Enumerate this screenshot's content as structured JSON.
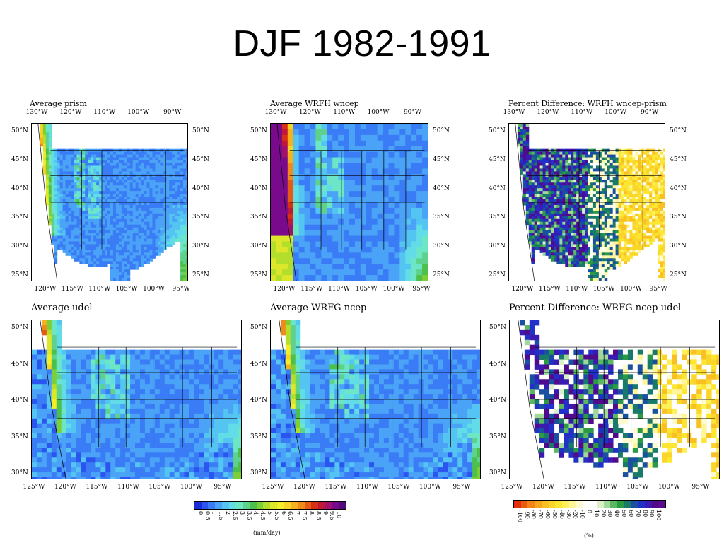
{
  "slide": {
    "title": "DJF 1982-1991"
  },
  "panels": [
    {
      "id": "prism",
      "title": "Average prism",
      "kind": "precip",
      "style": "fine",
      "top_lon_labels": [
        "130°W",
        "120°W",
        "110°W",
        "100°W",
        "90°W"
      ],
      "bottom_lon_labels": [
        "120°W",
        "115°W",
        "110°W",
        "105°W",
        "100°W",
        "95°W"
      ],
      "lat_labels": [
        "50°N",
        "45°N",
        "40°N",
        "35°N",
        "30°N",
        "25°N"
      ],
      "right_lat_labels": [
        "50°N",
        "45°N",
        "40°N",
        "35°N",
        "30°N",
        "25°N"
      ]
    },
    {
      "id": "wrfh",
      "title": "Average WRFH wncep",
      "kind": "precip",
      "style": "smooth",
      "top_lon_labels": [
        "130°W",
        "120°W",
        "110°W",
        "100°W",
        "90°W"
      ],
      "bottom_lon_labels": [
        "120°W",
        "115°W",
        "110°W",
        "105°W",
        "100°W",
        "95°W"
      ],
      "lat_labels": [
        "50°N",
        "45°N",
        "40°N",
        "35°N",
        "30°N",
        "25°N"
      ],
      "right_lat_labels": [
        "50°N",
        "45°N",
        "40°N",
        "35°N",
        "30°N",
        "25°N"
      ]
    },
    {
      "id": "diffh",
      "title": "Percent Difference: WRFH wncep-prism",
      "kind": "diff",
      "style": "fine",
      "top_lon_labels": [
        "130°W",
        "120°W",
        "110°W",
        "100°W",
        "90°W"
      ],
      "bottom_lon_labels": [
        "120°W",
        "115°W",
        "110°W",
        "105°W",
        "100°W",
        "95°W"
      ],
      "lat_labels": [
        "50°N",
        "45°N",
        "40°N",
        "35°N",
        "30°N",
        "25°N"
      ],
      "right_lat_labels": [
        "50°N",
        "45°N",
        "40°N",
        "35°N",
        "30°N",
        "25°N"
      ]
    },
    {
      "id": "udel",
      "title": "Average udel",
      "kind": "precip",
      "style": "grid",
      "top_lon_labels": [],
      "bottom_lon_labels": [
        "125°W",
        "120°W",
        "115°W",
        "110°W",
        "105°W",
        "100°W",
        "95°W"
      ],
      "lat_labels": [
        "50°N",
        "45°N",
        "40°N",
        "35°N",
        "30°N"
      ],
      "right_lat_labels": []
    },
    {
      "id": "wrfg",
      "title": "Average WRFG ncep",
      "kind": "precip",
      "style": "grid",
      "top_lon_labels": [],
      "bottom_lon_labels": [
        "125°W",
        "120°W",
        "115°W",
        "110°W",
        "105°W",
        "100°W",
        "95°W"
      ],
      "lat_labels": [
        "50°N",
        "45°N",
        "40°N",
        "35°N",
        "30°N"
      ],
      "right_lat_labels": []
    },
    {
      "id": "diffg",
      "title": "Percent Difference: WRFG ncep-udel",
      "kind": "diff",
      "style": "grid",
      "top_lon_labels": [],
      "bottom_lon_labels": [
        "125°W",
        "120°W",
        "115°W",
        "110°W",
        "105°W",
        "100°W",
        "95°W"
      ],
      "lat_labels": [
        "50°N",
        "45°N",
        "40°N",
        "35°N",
        "30°N"
      ],
      "right_lat_labels": []
    }
  ],
  "colorbars": [
    {
      "id": "precip",
      "unit": "(mm/day)",
      "labels": [
        "0",
        "0.5",
        "1",
        "1.5",
        "2",
        "2.5",
        "3",
        "3.5",
        "4",
        "4.5",
        "5",
        "5.5",
        "6",
        "6.5",
        "7",
        "7.5",
        "8",
        "8.5",
        "9",
        "9.5",
        "10"
      ],
      "colors": [
        "#1a2fd6",
        "#2a55f0",
        "#3a7cf5",
        "#4aa3f7",
        "#54c4f2",
        "#62dde8",
        "#6de6c6",
        "#5ed28c",
        "#4cc04a",
        "#7ccf36",
        "#b4de2c",
        "#dce72a",
        "#f4ee2a",
        "#f8d424",
        "#f6b21e",
        "#f08a1a",
        "#e65a16",
        "#d83014",
        "#c01838",
        "#a0106c",
        "#7a0a8c",
        "#520a7a"
      ]
    },
    {
      "id": "diff",
      "unit": "(%)",
      "labels": [
        "-100",
        "-90",
        "-80",
        "-70",
        "-60",
        "-50",
        "-40",
        "-30",
        "-20",
        "-10",
        "0",
        "10",
        "20",
        "30",
        "40",
        "50",
        "60",
        "70",
        "80",
        "90",
        "100"
      ],
      "colors": [
        "#e0300e",
        "#ea5a12",
        "#f28418",
        "#f7a41e",
        "#f9c024",
        "#fbd62a",
        "#fde632",
        "#fef05a",
        "#fff69a",
        "#fffbd0",
        "#ffffff",
        "#ffffff",
        "#d9f0c8",
        "#9fd89a",
        "#5cb860",
        "#2a9a44",
        "#1a7a6a",
        "#1a50a0",
        "#2030c8",
        "#3a1ab0",
        "#520a8c",
        "#5a0a8a"
      ]
    }
  ]
}
